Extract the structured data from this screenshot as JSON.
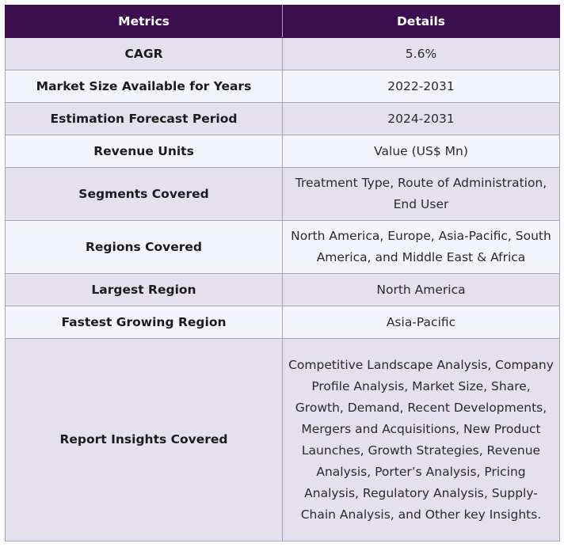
{
  "table": {
    "headers": [
      "Metrics",
      "Details"
    ],
    "rows": [
      {
        "metric": "CAGR",
        "details": "5.6%"
      },
      {
        "metric": "Market Size Available for Years",
        "details": "2022-2031"
      },
      {
        "metric": "Estimation Forecast Period",
        "details": "2024-2031"
      },
      {
        "metric": "Revenue Units",
        "details": "Value (US$ Mn)"
      },
      {
        "metric": "Segments Covered",
        "details": "Treatment Type, Route of Administration, End User"
      },
      {
        "metric": "Regions Covered",
        "details": "North America, Europe, Asia-Pacific, South America, and Middle East & Africa"
      },
      {
        "metric": "Largest Region",
        "details": "North America"
      },
      {
        "metric": "Fastest Growing Region",
        "details": "Asia-Pacific"
      },
      {
        "metric": "Report Insights Covered",
        "details": "Competitive Landscape Analysis, Company Profile Analysis, Market Size, Share, Growth, Demand, Recent Developments, Mergers and Acquisitions, New Product Launches, Growth Strategies, Revenue Analysis, Porter’s Analysis, Pricing Analysis, Regulatory Analysis, Supply-Chain Analysis, and Other key Insights."
      }
    ]
  },
  "colors": {
    "header_bg": "#3b0f4d",
    "row_shaded": "#e5e0ee",
    "row_light": "#f4f4fb",
    "border": "#a9a4b6"
  }
}
